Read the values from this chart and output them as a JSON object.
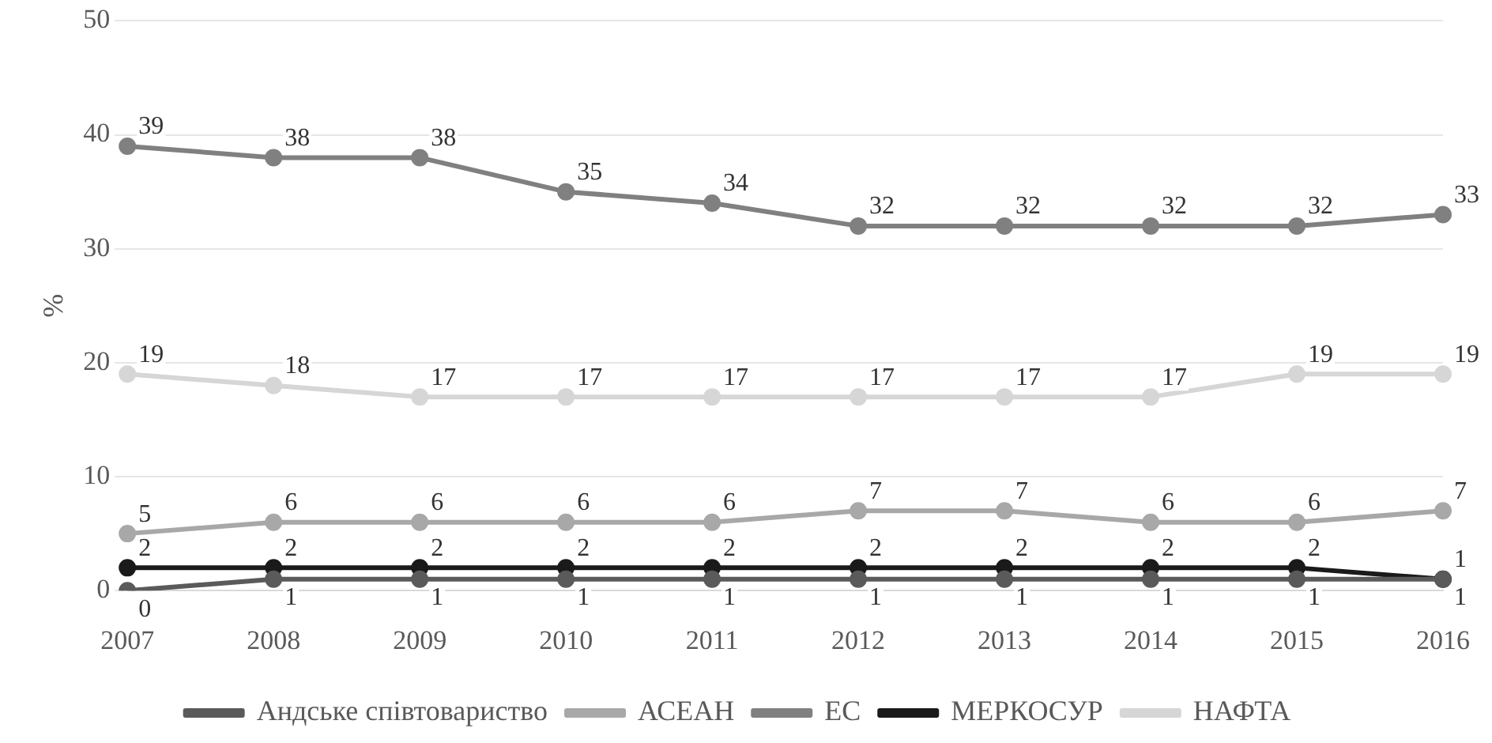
{
  "chart_data": {
    "type": "line",
    "ylabel": "%",
    "categories": [
      "2007",
      "2008",
      "2009",
      "2010",
      "2011",
      "2012",
      "2013",
      "2014",
      "2015",
      "2016"
    ],
    "series": [
      {
        "name": "Андське співтовариство",
        "color": "#5a5a5a",
        "values": [
          0,
          1,
          1,
          1,
          1,
          1,
          1,
          1,
          1,
          1
        ]
      },
      {
        "name": "АСЕАН",
        "color": "#a8a8a8",
        "values": [
          5,
          6,
          6,
          6,
          6,
          7,
          7,
          6,
          6,
          7
        ]
      },
      {
        "name": "ЕС",
        "color": "#808080",
        "values": [
          39,
          38,
          38,
          35,
          34,
          32,
          32,
          32,
          32,
          33
        ]
      },
      {
        "name": "МЕРКОСУР",
        "color": "#1a1a1a",
        "values": [
          2,
          2,
          2,
          2,
          2,
          2,
          2,
          2,
          2,
          1
        ]
      },
      {
        "name": "НАФТА",
        "color": "#d6d6d6",
        "values": [
          19,
          18,
          17,
          17,
          17,
          17,
          17,
          17,
          19,
          19
        ]
      }
    ],
    "ylim": [
      0,
      50
    ],
    "yticks": [
      0,
      10,
      20,
      30,
      40,
      50
    ],
    "grid": "y",
    "legend": "bottom",
    "marker": "circle",
    "line_style": "solid",
    "data_labels": true
  }
}
